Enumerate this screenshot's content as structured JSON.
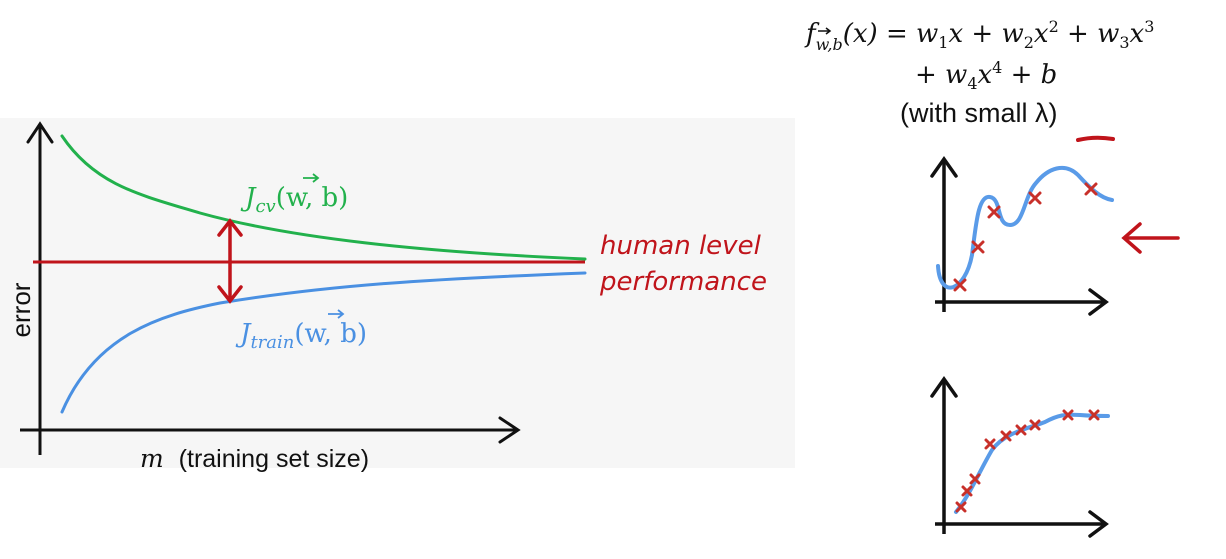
{
  "learning_curve": {
    "y_axis_label": "error",
    "x_axis_label_var": "m",
    "x_axis_label_text": "(training set size)",
    "jcv_J": "J",
    "jcv_sub": "cv",
    "jcv_args": "(w, b)",
    "jtrain_J": "J",
    "jtrain_sub": "train",
    "jtrain_args": "(w, b)",
    "human_line1": "human level",
    "human_line2": "performance"
  },
  "formula": {
    "f": "f",
    "f_sub": "w,b",
    "line1_rest": "(x) = w",
    "line2": "+ w",
    "note": "(with small λ)"
  },
  "colors": {
    "cv_green": "#22b14c",
    "train_blue": "#4a90e2",
    "human_red": "#c0141b",
    "fit_blue": "#5a9be8",
    "mark_red": "#c8302a",
    "axis": "#111111"
  },
  "icons": [
    "double-arrow-icon",
    "left-arrow-icon",
    "x-mark-icon",
    "vector-arrow-icon"
  ]
}
